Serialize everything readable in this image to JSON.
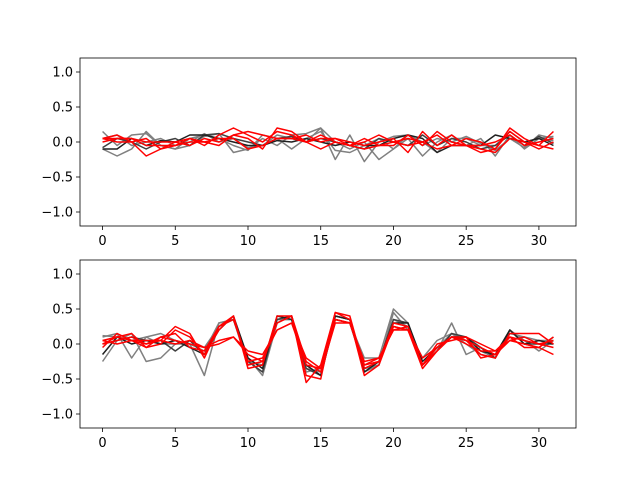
{
  "chart_data": [
    {
      "type": "line",
      "title": "",
      "xlabel": "",
      "ylabel": "",
      "xlim": [
        -1.55,
        32.55
      ],
      "ylim": [
        -1.2,
        1.2
      ],
      "xticks": [
        0,
        5,
        10,
        15,
        20,
        25,
        30
      ],
      "yticks": [
        -1.0,
        -0.5,
        0.0,
        0.5,
        1.0
      ],
      "xtick_labels": [
        "0",
        "5",
        "10",
        "15",
        "20",
        "25",
        "30"
      ],
      "ytick_labels": [
        "−1.0",
        "−0.5",
        "0.0",
        "0.5",
        "1.0"
      ],
      "grid": false,
      "series": [
        {
          "color": "#808080",
          "values": [
            0.15,
            -0.05,
            0.1,
            0.12,
            -0.05,
            -0.1,
            -0.05,
            0.08,
            0.12,
            -0.15,
            -0.1,
            0.05,
            -0.05,
            0.1,
            0.12,
            0.2,
            -0.25,
            0.1,
            -0.28,
            0.0,
            0.08,
            0.1,
            -0.05,
            0.05,
            0.0,
            0.08,
            -0.02,
            -0.12,
            0.05,
            -0.08,
            0.1,
            0.05
          ]
        },
        {
          "color": "#808080",
          "values": [
            -0.1,
            -0.2,
            -0.1,
            0.15,
            -0.05,
            -0.1,
            0.05,
            0.1,
            0.05,
            -0.05,
            -0.12,
            0.1,
            0.05,
            -0.1,
            0.05,
            0.15,
            -0.12,
            -0.15,
            -0.05,
            0.05,
            -0.1,
            0.05,
            -0.2,
            0.0,
            0.1,
            -0.05,
            0.05,
            -0.2,
            0.1,
            -0.1,
            0.05,
            0.02
          ]
        },
        {
          "color": "#808080",
          "values": [
            0.05,
            0.1,
            -0.05,
            0.0,
            0.05,
            -0.05,
            0.0,
            0.12,
            0.0,
            0.05,
            -0.08,
            -0.05,
            0.1,
            0.05,
            0.0,
            0.2,
            0.0,
            -0.1,
            0.0,
            -0.25,
            -0.1,
            0.1,
            0.0,
            -0.15,
            0.05,
            0.05,
            -0.05,
            -0.05,
            0.15,
            0.0,
            0.05,
            0.08
          ]
        },
        {
          "color": "#404040",
          "values": [
            -0.08,
            0.05,
            0.0,
            -0.1,
            0.0,
            0.05,
            -0.05,
            0.1,
            0.12,
            0.05,
            0.0,
            -0.05,
            0.05,
            0.08,
            0.0,
            0.05,
            0.0,
            -0.05,
            -0.1,
            0.05,
            0.0,
            -0.05,
            0.1,
            -0.05,
            0.05,
            0.0,
            -0.1,
            -0.05,
            0.1,
            -0.05,
            0.08,
            -0.02
          ]
        },
        {
          "color": "#202020",
          "values": [
            -0.1,
            -0.1,
            0.05,
            -0.05,
            0.02,
            0.0,
            0.1,
            0.1,
            0.05,
            0.0,
            -0.05,
            -0.05,
            0.02,
            0.0,
            0.05,
            0.0,
            -0.05,
            0.0,
            -0.05,
            -0.05,
            0.05,
            0.1,
            0.05,
            -0.15,
            -0.05,
            -0.05,
            -0.05,
            0.1,
            0.05,
            0.0,
            0.05,
            -0.05
          ]
        },
        {
          "color": "#ff0000",
          "values": [
            0.05,
            0.1,
            0.0,
            -0.2,
            -0.1,
            0.0,
            -0.05,
            0.05,
            0.0,
            0.1,
            0.15,
            0.1,
            0.05,
            0.05,
            0.1,
            0.0,
            0.05,
            0.0,
            -0.05,
            0.0,
            0.05,
            -0.15,
            0.15,
            -0.05,
            0.1,
            -0.05,
            -0.1,
            -0.15,
            0.05,
            0.0,
            -0.05,
            -0.1
          ]
        },
        {
          "color": "#ff0000",
          "values": [
            0.05,
            0.05,
            0.05,
            0.0,
            0.0,
            0.0,
            0.05,
            -0.05,
            0.1,
            0.2,
            0.1,
            0.0,
            0.15,
            0.1,
            0.0,
            0.1,
            0.0,
            -0.05,
            0.05,
            -0.05,
            -0.05,
            0.1,
            -0.05,
            0.15,
            0.0,
            -0.05,
            -0.15,
            -0.1,
            0.2,
            0.05,
            -0.05,
            0.15
          ]
        },
        {
          "color": "#ff0000",
          "values": [
            0.0,
            0.05,
            0.05,
            -0.05,
            -0.05,
            -0.05,
            0.05,
            0.0,
            -0.05,
            0.1,
            0.05,
            -0.1,
            0.2,
            0.15,
            0.0,
            0.05,
            0.05,
            -0.05,
            0.0,
            0.1,
            0.0,
            0.05,
            0.0,
            -0.1,
            -0.05,
            0.05,
            0.0,
            -0.1,
            0.15,
            0.0,
            -0.1,
            0.0
          ]
        },
        {
          "color": "#ff0000",
          "values": [
            0.05,
            0.0,
            0.0,
            0.05,
            -0.1,
            -0.05,
            0.0,
            0.0,
            0.05,
            0.05,
            -0.1,
            -0.05,
            0.05,
            0.05,
            0.0,
            -0.1,
            0.0,
            -0.05,
            -0.1,
            -0.05,
            0.0,
            -0.05,
            0.0,
            0.1,
            -0.05,
            -0.05,
            -0.05,
            0.0,
            0.1,
            -0.05,
            0.0,
            0.05
          ]
        }
      ]
    },
    {
      "type": "line",
      "title": "",
      "xlabel": "",
      "ylabel": "",
      "xlim": [
        -1.55,
        32.55
      ],
      "ylim": [
        -1.2,
        1.2
      ],
      "xticks": [
        0,
        5,
        10,
        15,
        20,
        25,
        30
      ],
      "yticks": [
        -1.0,
        -0.5,
        0.0,
        0.5,
        1.0
      ],
      "xtick_labels": [
        "0",
        "5",
        "10",
        "15",
        "20",
        "25",
        "30"
      ],
      "ytick_labels": [
        "−1.0",
        "−0.5",
        "0.0",
        "0.5",
        "1.0"
      ],
      "grid": false,
      "series": [
        {
          "color": "#808080",
          "values": [
            0.1,
            0.15,
            -0.2,
            0.1,
            0.15,
            0.05,
            0.0,
            -0.45,
            0.3,
            0.35,
            -0.2,
            -0.45,
            0.3,
            0.4,
            -0.3,
            -0.45,
            0.35,
            0.3,
            -0.2,
            -0.2,
            0.5,
            0.3,
            -0.3,
            -0.1,
            0.3,
            -0.15,
            -0.05,
            -0.2,
            0.2,
            0.0,
            -0.05,
            0.1
          ]
        },
        {
          "color": "#808080",
          "values": [
            -0.25,
            0.05,
            0.15,
            -0.25,
            -0.2,
            0.0,
            0.0,
            -0.1,
            0.3,
            0.35,
            -0.3,
            -0.25,
            0.35,
            0.35,
            -0.4,
            -0.35,
            0.4,
            0.35,
            -0.35,
            -0.3,
            0.45,
            0.2,
            -0.2,
            0.05,
            0.15,
            0.0,
            -0.15,
            -0.2,
            0.2,
            0.05,
            -0.1,
            0.05
          ]
        },
        {
          "color": "#808080",
          "values": [
            0.12,
            0.1,
            0.05,
            0.1,
            0.0,
            0.0,
            0.05,
            -0.05,
            0.25,
            0.35,
            -0.25,
            -0.3,
            0.35,
            0.35,
            -0.35,
            -0.4,
            0.4,
            0.35,
            -0.4,
            -0.3,
            0.35,
            0.25,
            -0.3,
            -0.05,
            0.15,
            0.05,
            -0.1,
            -0.2,
            0.15,
            0.1,
            0.05,
            0.05
          ]
        },
        {
          "color": "#404040",
          "values": [
            0.0,
            0.05,
            0.1,
            0.05,
            0.05,
            -0.1,
            0.05,
            -0.15,
            0.25,
            0.35,
            -0.25,
            -0.4,
            0.35,
            0.4,
            -0.35,
            -0.45,
            0.35,
            0.3,
            -0.35,
            -0.25,
            0.35,
            0.3,
            -0.3,
            -0.1,
            0.15,
            0.1,
            -0.05,
            -0.2,
            0.2,
            0.0,
            0.0,
            0.0
          ]
        },
        {
          "color": "#202020",
          "values": [
            -0.15,
            0.1,
            0.0,
            0.05,
            0.0,
            0.05,
            -0.05,
            -0.15,
            0.2,
            0.4,
            -0.2,
            -0.35,
            0.4,
            0.35,
            -0.3,
            -0.45,
            0.4,
            0.35,
            -0.4,
            -0.25,
            0.3,
            0.3,
            -0.25,
            -0.05,
            0.1,
            0.1,
            -0.1,
            -0.15,
            0.2,
            0.0,
            0.05,
            0.0
          ]
        },
        {
          "color": "#ff0000",
          "values": [
            -0.05,
            0.15,
            0.05,
            0.0,
            0.05,
            0.25,
            0.15,
            -0.2,
            0.25,
            0.4,
            -0.35,
            -0.3,
            0.4,
            0.4,
            -0.55,
            -0.3,
            0.45,
            0.35,
            -0.45,
            -0.3,
            0.25,
            0.2,
            -0.35,
            -0.1,
            0.1,
            0.1,
            -0.2,
            -0.15,
            0.1,
            -0.05,
            -0.05,
            0.1
          ]
        },
        {
          "color": "#ff0000",
          "values": [
            0.05,
            0.1,
            0.05,
            -0.05,
            0.0,
            0.2,
            0.1,
            -0.15,
            0.2,
            0.4,
            -0.3,
            -0.25,
            0.3,
            0.4,
            -0.45,
            -0.5,
            0.45,
            0.4,
            -0.35,
            -0.25,
            0.3,
            0.25,
            -0.3,
            -0.1,
            0.1,
            0.05,
            -0.15,
            -0.2,
            0.15,
            0.15,
            0.15,
            0.0
          ]
        },
        {
          "color": "#ff0000",
          "values": [
            0.0,
            0.05,
            0.1,
            0.0,
            0.1,
            0.15,
            -0.05,
            -0.1,
            0.25,
            0.35,
            -0.25,
            -0.2,
            0.2,
            0.3,
            -0.3,
            -0.35,
            0.35,
            0.3,
            -0.3,
            -0.2,
            0.2,
            0.2,
            -0.2,
            -0.05,
            0.1,
            0.0,
            -0.1,
            -0.1,
            0.1,
            0.05,
            0.0,
            0.05
          ]
        },
        {
          "color": "#ff0000",
          "values": [
            0.0,
            0.1,
            0.15,
            -0.05,
            0.1,
            0.05,
            0.0,
            -0.05,
            0.0,
            0.1,
            -0.15,
            -0.25,
            0.3,
            0.4,
            -0.25,
            -0.4,
            0.3,
            0.3,
            -0.3,
            -0.25,
            0.25,
            0.2,
            -0.3,
            0.0,
            0.05,
            0.1,
            0.0,
            -0.1,
            0.05,
            0.1,
            0.0,
            -0.05
          ]
        },
        {
          "color": "#ff0000",
          "values": [
            0.05,
            0.0,
            0.05,
            0.05,
            0.05,
            0.0,
            0.05,
            -0.05,
            0.05,
            0.1,
            -0.1,
            -0.15,
            0.2,
            0.3,
            -0.2,
            -0.35,
            0.35,
            0.3,
            -0.25,
            -0.2,
            0.2,
            0.25,
            -0.3,
            -0.05,
            0.1,
            0.05,
            -0.05,
            -0.15,
            0.05,
            0.0,
            -0.05,
            -0.15
          ]
        }
      ]
    }
  ]
}
